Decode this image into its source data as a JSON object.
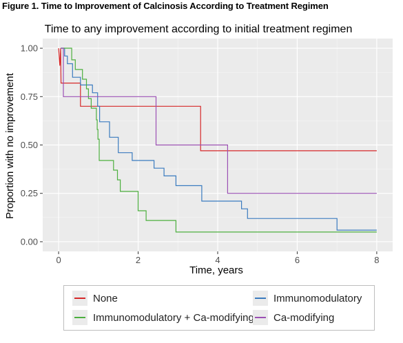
{
  "figure_label": "Figure 1. Time to Improvement of Calcinosis According to Treatment Regimen",
  "colors": {
    "None": "#d62728",
    "Immunomodulatory": "#3a7bbf",
    "Immunomodulatory + Ca-modifying": "#4caf3e",
    "Ca-modifying": "#9b4fb3",
    "panel_bg": "#ebebeb",
    "grid": "#ffffff"
  },
  "chart_data": {
    "type": "line",
    "subtype": "kaplan-meier step",
    "title": "Time to any improvement according to initial treatment regimen",
    "xlabel": "Time, years",
    "ylabel": "Proportion with no improvement",
    "xlim": [
      -0.4,
      8.4
    ],
    "ylim": [
      -0.05,
      1.05
    ],
    "xticks": [
      "0",
      "2",
      "4",
      "6",
      "8"
    ],
    "yticks": [
      "0.00",
      "0.25",
      "0.50",
      "0.75",
      "1.00"
    ],
    "grid": true,
    "legend_position": "bottom",
    "series": [
      {
        "name": "None",
        "points": [
          [
            0,
            1.0
          ],
          [
            0.03,
            0.91
          ],
          [
            0.05,
            1.0
          ],
          [
            0.06,
            0.82
          ],
          [
            0.55,
            0.82
          ],
          [
            0.55,
            0.7
          ],
          [
            3.57,
            0.7
          ],
          [
            3.57,
            0.47
          ],
          [
            8.0,
            0.47
          ]
        ]
      },
      {
        "name": "Immunomodulatory",
        "points": [
          [
            0.05,
            1.0
          ],
          [
            0.15,
            1.0
          ],
          [
            0.15,
            0.96
          ],
          [
            0.22,
            0.96
          ],
          [
            0.22,
            0.92
          ],
          [
            0.35,
            0.92
          ],
          [
            0.35,
            0.85
          ],
          [
            0.55,
            0.85
          ],
          [
            0.55,
            0.81
          ],
          [
            0.85,
            0.81
          ],
          [
            0.85,
            0.77
          ],
          [
            0.98,
            0.77
          ],
          [
            0.98,
            0.7
          ],
          [
            1.03,
            0.7
          ],
          [
            1.03,
            0.62
          ],
          [
            1.28,
            0.62
          ],
          [
            1.28,
            0.54
          ],
          [
            1.5,
            0.54
          ],
          [
            1.5,
            0.46
          ],
          [
            1.85,
            0.46
          ],
          [
            1.85,
            0.42
          ],
          [
            2.4,
            0.42
          ],
          [
            2.4,
            0.38
          ],
          [
            2.65,
            0.38
          ],
          [
            2.65,
            0.34
          ],
          [
            2.95,
            0.34
          ],
          [
            2.95,
            0.29
          ],
          [
            3.6,
            0.29
          ],
          [
            3.6,
            0.21
          ],
          [
            4.6,
            0.21
          ],
          [
            4.6,
            0.17
          ],
          [
            4.75,
            0.17
          ],
          [
            4.75,
            0.12
          ],
          [
            7.0,
            0.12
          ],
          [
            7.0,
            0.06
          ],
          [
            8.0,
            0.06
          ]
        ]
      },
      {
        "name": "Immunomodulatory + Ca-modifying",
        "points": [
          [
            0.05,
            1.0
          ],
          [
            0.33,
            1.0
          ],
          [
            0.33,
            0.94
          ],
          [
            0.42,
            0.94
          ],
          [
            0.42,
            0.89
          ],
          [
            0.6,
            0.89
          ],
          [
            0.6,
            0.84
          ],
          [
            0.7,
            0.84
          ],
          [
            0.7,
            0.79
          ],
          [
            0.75,
            0.79
          ],
          [
            0.75,
            0.74
          ],
          [
            0.82,
            0.74
          ],
          [
            0.82,
            0.69
          ],
          [
            0.95,
            0.69
          ],
          [
            0.95,
            0.63
          ],
          [
            0.97,
            0.63
          ],
          [
            0.97,
            0.58
          ],
          [
            0.99,
            0.58
          ],
          [
            0.99,
            0.53
          ],
          [
            1.02,
            0.53
          ],
          [
            1.02,
            0.42
          ],
          [
            1.38,
            0.42
          ],
          [
            1.38,
            0.37
          ],
          [
            1.48,
            0.37
          ],
          [
            1.48,
            0.32
          ],
          [
            1.55,
            0.32
          ],
          [
            1.55,
            0.26
          ],
          [
            2.0,
            0.26
          ],
          [
            2.0,
            0.16
          ],
          [
            2.2,
            0.16
          ],
          [
            2.2,
            0.11
          ],
          [
            2.95,
            0.11
          ],
          [
            2.95,
            0.05
          ],
          [
            8.0,
            0.05
          ]
        ]
      },
      {
        "name": "Ca-modifying",
        "points": [
          [
            0.05,
            1.0
          ],
          [
            0.12,
            1.0
          ],
          [
            0.12,
            0.75
          ],
          [
            2.45,
            0.75
          ],
          [
            2.45,
            0.5
          ],
          [
            4.25,
            0.5
          ],
          [
            4.25,
            0.25
          ],
          [
            8.0,
            0.25
          ]
        ]
      }
    ]
  },
  "legend": {
    "items": [
      "None",
      "Immunomodulatory",
      "Immunomodulatory + Ca-modifying",
      "Ca-modifying"
    ]
  }
}
